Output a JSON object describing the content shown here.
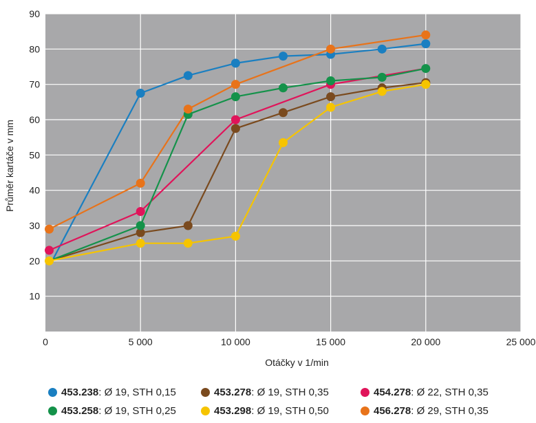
{
  "chart_data": {
    "type": "line",
    "title": "",
    "xlabel": "Otáčky v 1/min",
    "ylabel": "Průměr kartáče v mm",
    "xlim": [
      0,
      25000
    ],
    "ylim": [
      0,
      90
    ],
    "grid": true,
    "legend_position": "bottom",
    "background_color": "#a8a8aa",
    "grid_color": "#ffffff",
    "x_ticks": [
      {
        "value": 0,
        "label": "0"
      },
      {
        "value": 5000,
        "label": "5 000"
      },
      {
        "value": 10000,
        "label": "10 000"
      },
      {
        "value": 15000,
        "label": "15 000"
      },
      {
        "value": 20000,
        "label": "20 000"
      },
      {
        "value": 25000,
        "label": "25 000"
      }
    ],
    "y_ticks": [
      {
        "value": 10,
        "label": "10"
      },
      {
        "value": 20,
        "label": "20"
      },
      {
        "value": 30,
        "label": "30"
      },
      {
        "value": 40,
        "label": "40"
      },
      {
        "value": 50,
        "label": "50"
      },
      {
        "value": 60,
        "label": "60"
      },
      {
        "value": 70,
        "label": "70"
      },
      {
        "value": 80,
        "label": "80"
      },
      {
        "value": 90,
        "label": "90"
      }
    ],
    "series": [
      {
        "code": "453.238",
        "desc": ": Ø 19, STH 0,15",
        "color": "#1a7fc1",
        "points": [
          [
            400,
            20.5
          ],
          [
            5000,
            67.5
          ],
          [
            7500,
            72.5
          ],
          [
            10000,
            76
          ],
          [
            12500,
            78
          ],
          [
            15000,
            78.5
          ],
          [
            17700,
            80
          ],
          [
            20000,
            81.5
          ]
        ],
        "markers": [
          [
            5000,
            67.5
          ],
          [
            7500,
            72.5
          ],
          [
            10000,
            76
          ],
          [
            12500,
            78
          ],
          [
            15000,
            78.5
          ],
          [
            17700,
            80
          ],
          [
            20000,
            81.5
          ]
        ]
      },
      {
        "code": "453.278",
        "desc": ": Ø 19, STH 0,35",
        "color": "#7a4a1e",
        "points": [
          [
            200,
            20
          ],
          [
            5000,
            28
          ],
          [
            7500,
            30
          ],
          [
            10000,
            57.5
          ],
          [
            12500,
            62
          ],
          [
            15000,
            66.5
          ],
          [
            17700,
            69
          ],
          [
            20000,
            70.5
          ]
        ],
        "markers": [
          [
            5000,
            28
          ],
          [
            7500,
            30
          ],
          [
            10000,
            57.5
          ],
          [
            12500,
            62
          ],
          [
            15000,
            66.5
          ],
          [
            17700,
            69
          ],
          [
            20000,
            70.5
          ]
        ]
      },
      {
        "code": "454.278",
        "desc": ": Ø 22, STH 0,35",
        "color": "#e0145a",
        "points": [
          [
            200,
            23
          ],
          [
            5000,
            34
          ],
          [
            10000,
            60
          ],
          [
            15000,
            70
          ],
          [
            20000,
            74.5
          ]
        ],
        "markers": [
          [
            200,
            23
          ],
          [
            5000,
            34
          ],
          [
            10000,
            60
          ],
          [
            15000,
            70
          ]
        ]
      },
      {
        "code": "453.258",
        "desc": ": Ø 19, STH 0,25",
        "color": "#14924a",
        "points": [
          [
            200,
            20
          ],
          [
            5000,
            30
          ],
          [
            7500,
            61.5
          ],
          [
            10000,
            66.5
          ],
          [
            12500,
            69
          ],
          [
            15000,
            71
          ],
          [
            17700,
            72
          ],
          [
            20000,
            74.5
          ]
        ],
        "markers": [
          [
            5000,
            30
          ],
          [
            7500,
            61.5
          ],
          [
            10000,
            66.5
          ],
          [
            12500,
            69
          ],
          [
            15000,
            71
          ],
          [
            17700,
            72
          ],
          [
            20000,
            74.5
          ]
        ]
      },
      {
        "code": "453.298",
        "desc": ": Ø 19, STH 0,50",
        "color": "#f6c400",
        "points": [
          [
            200,
            20
          ],
          [
            5000,
            25
          ],
          [
            7500,
            25
          ],
          [
            10000,
            27
          ],
          [
            12500,
            53.5
          ],
          [
            15000,
            63.5
          ],
          [
            17700,
            68
          ],
          [
            20000,
            70
          ]
        ],
        "markers": [
          [
            200,
            20
          ],
          [
            5000,
            25
          ],
          [
            7500,
            25
          ],
          [
            10000,
            27
          ],
          [
            12500,
            53.5
          ],
          [
            15000,
            63.5
          ],
          [
            17700,
            68
          ],
          [
            20000,
            70
          ]
        ]
      },
      {
        "code": "456.278",
        "desc": ": Ø 29, STH 0,35",
        "color": "#e8731a",
        "points": [
          [
            200,
            29
          ],
          [
            5000,
            42
          ],
          [
            7500,
            63
          ],
          [
            10000,
            70
          ],
          [
            15000,
            80
          ],
          [
            20000,
            84
          ]
        ],
        "markers": [
          [
            200,
            29
          ],
          [
            5000,
            42
          ],
          [
            7500,
            63
          ],
          [
            10000,
            70
          ],
          [
            15000,
            80
          ],
          [
            20000,
            84
          ]
        ]
      }
    ]
  }
}
